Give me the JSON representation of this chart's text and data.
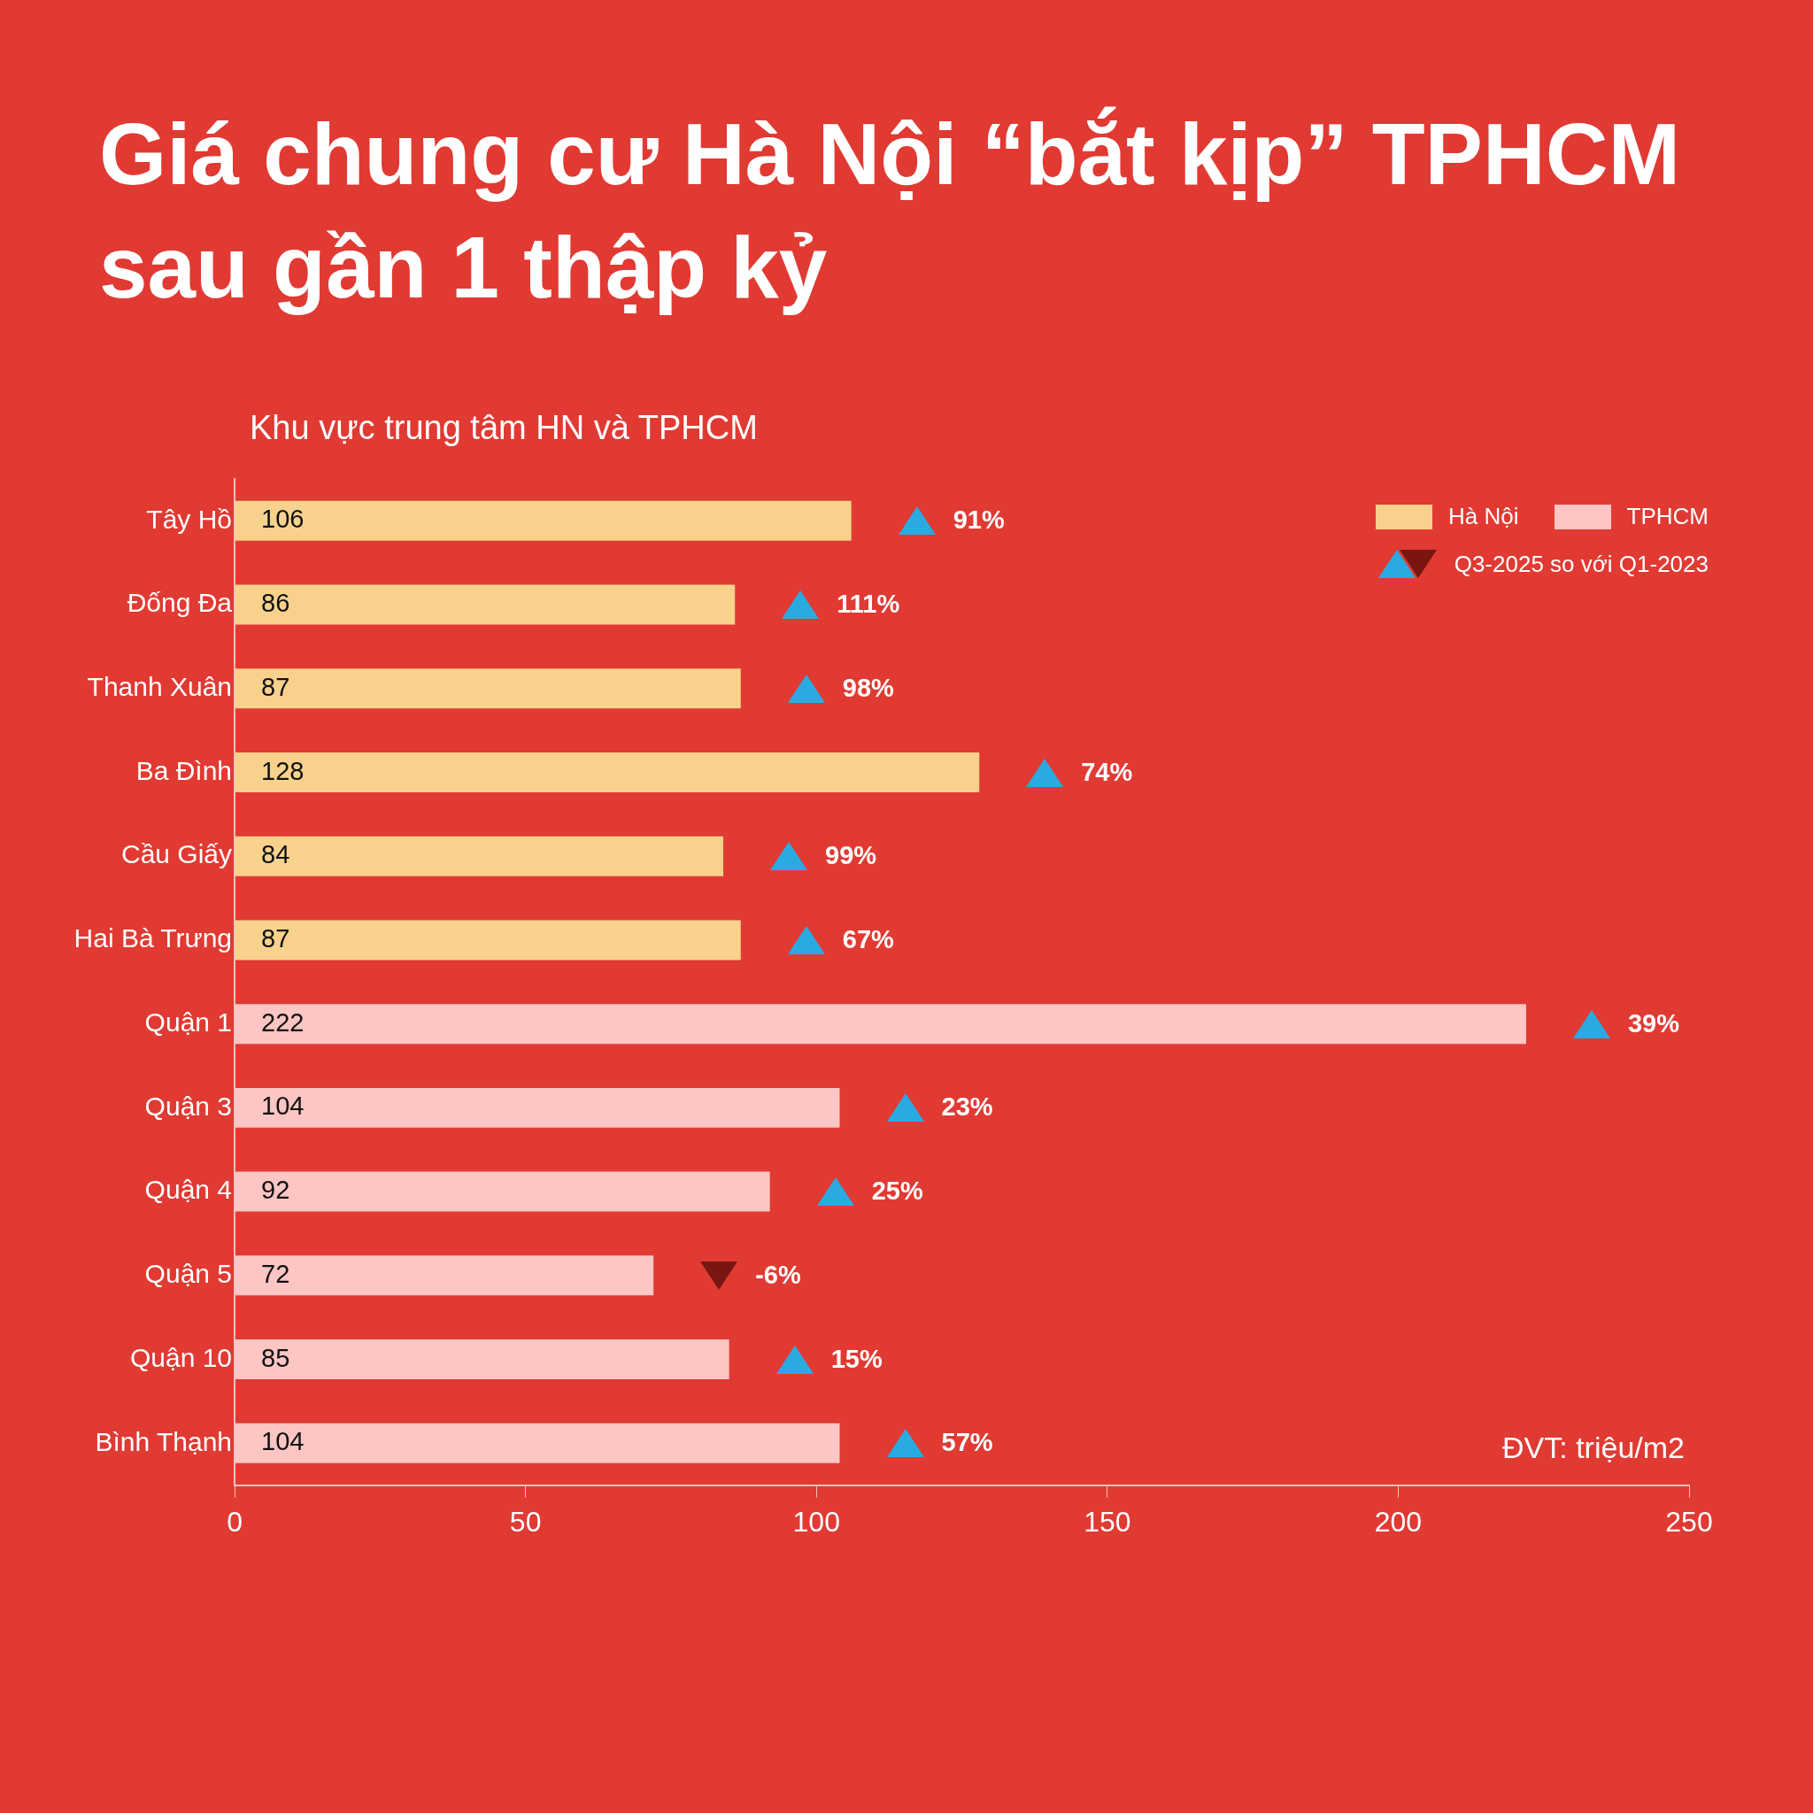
{
  "chart_data": {
    "type": "bar",
    "orientation": "horizontal",
    "title": "Giá chung cư Hà Nội “bắt kịp” TPHCM sau gần 1 thập kỷ",
    "subtitle": "Khu vực trung tâm HN và TPHCM",
    "categories": [
      "Tây Hồ",
      "Đống Đa",
      "Thanh Xuân",
      "Ba Đình",
      "Cầu Giấy",
      "Hai Bà Trưng",
      "Quận 1",
      "Quận 3",
      "Quận 4",
      "Quận 5",
      "Quận 10",
      "Bình Thạnh"
    ],
    "series": [
      {
        "name": "Hà Nội",
        "color": "#f8d28d",
        "values": [
          106,
          86,
          87,
          128,
          84,
          87,
          null,
          null,
          null,
          null,
          null,
          null
        ]
      },
      {
        "name": "TPHCM",
        "color": "#fdc5c3",
        "values": [
          null,
          null,
          null,
          null,
          null,
          null,
          222,
          104,
          92,
          72,
          85,
          104
        ]
      }
    ],
    "xlim": [
      0,
      250
    ],
    "xticks": [
      0,
      50,
      100,
      150,
      200,
      250
    ],
    "data_labels": true,
    "grid": false,
    "legend": "top right",
    "annotations": [
      "91%",
      "111%",
      "98%",
      "74%",
      "99%",
      "67%",
      "39%",
      "23%",
      "25%",
      "-6%",
      "15%",
      "57%",
      "Q3-2025 so với Q1-2023",
      "ĐVT: triệu/m2"
    ]
  }
}
